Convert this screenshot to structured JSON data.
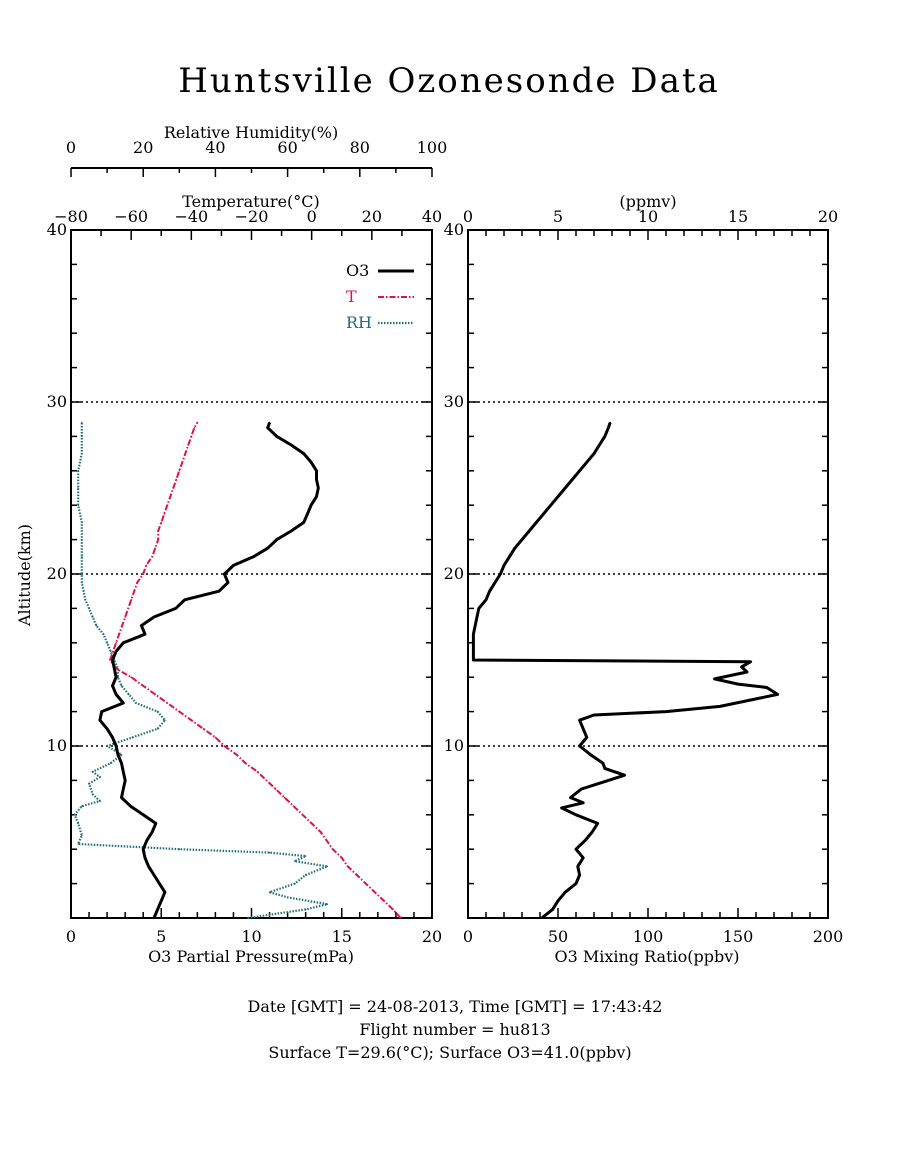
{
  "title": "Huntsville Ozonesonde Data",
  "footer": {
    "line1": "Date [GMT] = 24-08-2013,  Time [GMT] = 17:43:42",
    "line2": "Flight number = hu813",
    "line3": "Surface T=29.6(°C); Surface O3=41.0(ppbv)"
  },
  "colors": {
    "o3": "#000000",
    "temperature": "#e0104a",
    "rh": "#1f6f78"
  },
  "chart_data": [
    {
      "type": "line",
      "panel": "left",
      "ylabel": "Altitude(km)",
      "ylim": [
        0,
        40
      ],
      "y_ticks": [
        10,
        20,
        30,
        40
      ],
      "reference_lines_km": [
        10,
        20,
        30
      ],
      "axes": {
        "o3": {
          "label": "O3 Partial Pressure(mPa)",
          "range": [
            0,
            20
          ],
          "ticks": [
            0,
            5,
            10,
            15,
            20
          ]
        },
        "temperature": {
          "label": "Temperature(°C)",
          "range": [
            -80,
            40
          ],
          "ticks": [
            -80,
            -60,
            -40,
            -20,
            0,
            20,
            40
          ]
        },
        "rh": {
          "label": "Relative Humidity(%)",
          "range": [
            0,
            100
          ],
          "ticks": [
            0,
            20,
            40,
            60,
            80,
            100
          ]
        }
      },
      "legend_position": "top-right",
      "series": [
        {
          "name": "O3",
          "axis": "o3",
          "style": "solid",
          "points": [
            [
              4.6,
              0
            ],
            [
              4.8,
              0.5
            ],
            [
              5.0,
              1.0
            ],
            [
              5.2,
              1.5
            ],
            [
              4.9,
              2.0
            ],
            [
              4.6,
              2.5
            ],
            [
              4.3,
              3.0
            ],
            [
              4.1,
              3.5
            ],
            [
              4.0,
              4.0
            ],
            [
              4.2,
              4.5
            ],
            [
              4.5,
              5.0
            ],
            [
              4.7,
              5.5
            ],
            [
              4.0,
              6.0
            ],
            [
              3.3,
              6.5
            ],
            [
              2.8,
              7.0
            ],
            [
              2.9,
              7.5
            ],
            [
              3.0,
              8.0
            ],
            [
              2.9,
              8.5
            ],
            [
              2.8,
              9.0
            ],
            [
              2.6,
              9.5
            ],
            [
              2.5,
              10.0
            ],
            [
              2.3,
              10.5
            ],
            [
              2.0,
              11.0
            ],
            [
              1.6,
              11.5
            ],
            [
              1.7,
              12.0
            ],
            [
              2.9,
              12.5
            ],
            [
              2.5,
              13.0
            ],
            [
              2.3,
              13.5
            ],
            [
              2.5,
              14.0
            ],
            [
              2.4,
              14.5
            ],
            [
              2.3,
              15.0
            ],
            [
              2.5,
              15.5
            ],
            [
              2.9,
              16.0
            ],
            [
              4.1,
              16.5
            ],
            [
              3.9,
              17.0
            ],
            [
              4.6,
              17.5
            ],
            [
              5.8,
              18.0
            ],
            [
              6.3,
              18.5
            ],
            [
              8.2,
              19.0
            ],
            [
              8.7,
              19.5
            ],
            [
              8.5,
              20.0
            ],
            [
              9.0,
              20.5
            ],
            [
              10.1,
              21.0
            ],
            [
              10.9,
              21.5
            ],
            [
              11.4,
              22.0
            ],
            [
              12.2,
              22.5
            ],
            [
              12.9,
              23.0
            ],
            [
              13.1,
              23.5
            ],
            [
              13.3,
              24.0
            ],
            [
              13.6,
              24.5
            ],
            [
              13.7,
              25.0
            ],
            [
              13.6,
              25.5
            ],
            [
              13.6,
              26.0
            ],
            [
              13.3,
              26.5
            ],
            [
              12.9,
              27.0
            ],
            [
              12.2,
              27.5
            ],
            [
              11.4,
              28.0
            ],
            [
              10.9,
              28.5
            ],
            [
              11.0,
              28.8
            ]
          ]
        },
        {
          "name": "T",
          "axis": "temperature",
          "style": "dash-dot",
          "points": [
            [
              29.6,
              0
            ],
            [
              27,
              0.5
            ],
            [
              24,
              1.0
            ],
            [
              21,
              1.5
            ],
            [
              18,
              2.0
            ],
            [
              15,
              2.5
            ],
            [
              12,
              3.0
            ],
            [
              10,
              3.5
            ],
            [
              7,
              4.0
            ],
            [
              5,
              4.5
            ],
            [
              3,
              5.0
            ],
            [
              0,
              5.5
            ],
            [
              -3,
              6.0
            ],
            [
              -6,
              6.5
            ],
            [
              -9,
              7.0
            ],
            [
              -12,
              7.5
            ],
            [
              -15,
              8.0
            ],
            [
              -18,
              8.5
            ],
            [
              -22,
              9.0
            ],
            [
              -25,
              9.5
            ],
            [
              -29,
              10.0
            ],
            [
              -32,
              10.5
            ],
            [
              -36,
              11.0
            ],
            [
              -40,
              11.5
            ],
            [
              -44,
              12.0
            ],
            [
              -48,
              12.5
            ],
            [
              -52,
              13.0
            ],
            [
              -56,
              13.5
            ],
            [
              -60,
              14.0
            ],
            [
              -65,
              14.5
            ],
            [
              -67,
              15.0
            ],
            [
              -66,
              15.5
            ],
            [
              -65,
              16.0
            ],
            [
              -64,
              16.5
            ],
            [
              -63,
              17.0
            ],
            [
              -62,
              17.5
            ],
            [
              -61,
              18.0
            ],
            [
              -60,
              18.5
            ],
            [
              -59,
              19.0
            ],
            [
              -58,
              19.5
            ],
            [
              -56,
              20.0
            ],
            [
              -55,
              20.5
            ],
            [
              -53,
              21.0
            ],
            [
              -52,
              21.5
            ],
            [
              -51,
              22.0
            ],
            [
              -51,
              22.5
            ],
            [
              -50,
              23.0
            ],
            [
              -49,
              23.5
            ],
            [
              -48,
              24.0
            ],
            [
              -47,
              24.5
            ],
            [
              -46,
              25.0
            ],
            [
              -45,
              25.5
            ],
            [
              -44,
              26.0
            ],
            [
              -43,
              26.5
            ],
            [
              -42,
              27.0
            ],
            [
              -41,
              27.5
            ],
            [
              -40,
              28.0
            ],
            [
              -39,
              28.5
            ],
            [
              -38,
              28.8
            ]
          ]
        },
        {
          "name": "RH",
          "axis": "rh",
          "style": "dotted",
          "points": [
            [
              49,
              0
            ],
            [
              65,
              0.5
            ],
            [
              71,
              0.8
            ],
            [
              60,
              1.2
            ],
            [
              55,
              1.5
            ],
            [
              62,
              2.0
            ],
            [
              65,
              2.5
            ],
            [
              71,
              3.0
            ],
            [
              62,
              3.3
            ],
            [
              65,
              3.6
            ],
            [
              55,
              3.8
            ],
            [
              30,
              4.0
            ],
            [
              2,
              4.3
            ],
            [
              3,
              4.8
            ],
            [
              2,
              5.5
            ],
            [
              1,
              6.0
            ],
            [
              3,
              6.5
            ],
            [
              8,
              6.8
            ],
            [
              6,
              7.2
            ],
            [
              5,
              7.8
            ],
            [
              8,
              8.2
            ],
            [
              6,
              8.5
            ],
            [
              11,
              9.0
            ],
            [
              14,
              9.5
            ],
            [
              10,
              10.0
            ],
            [
              17,
              10.5
            ],
            [
              24,
              11.0
            ],
            [
              26,
              11.5
            ],
            [
              24,
              12.0
            ],
            [
              18,
              12.5
            ],
            [
              16,
              13.0
            ],
            [
              14,
              13.5
            ],
            [
              13,
              14.0
            ],
            [
              13,
              14.5
            ],
            [
              12,
              15.0
            ],
            [
              11,
              15.5
            ],
            [
              10,
              16.0
            ],
            [
              9,
              16.5
            ],
            [
              7,
              17.0
            ],
            [
              6,
              17.5
            ],
            [
              5,
              18.0
            ],
            [
              4,
              18.5
            ],
            [
              3.5,
              19.0
            ],
            [
              3,
              19.5
            ],
            [
              3,
              20.0
            ],
            [
              3,
              21.0
            ],
            [
              3,
              22.0
            ],
            [
              3,
              23.0
            ],
            [
              2,
              24.0
            ],
            [
              2,
              25.0
            ],
            [
              2,
              26.0
            ],
            [
              3,
              27.0
            ],
            [
              3,
              28.0
            ],
            [
              3,
              28.8
            ]
          ]
        }
      ]
    },
    {
      "type": "line",
      "panel": "right",
      "ylim": [
        0,
        40
      ],
      "y_ticks": [
        10,
        20,
        30,
        40
      ],
      "reference_lines_km": [
        10,
        20,
        30
      ],
      "axes": {
        "ppbv": {
          "label": "O3 Mixing Ratio(ppbv)",
          "range": [
            0,
            200
          ],
          "ticks": [
            0,
            50,
            100,
            150,
            200
          ]
        },
        "ppmv": {
          "label": "(ppmv)",
          "range": [
            0,
            20
          ],
          "ticks": [
            0,
            5,
            10,
            15,
            20
          ]
        }
      },
      "series": [
        {
          "name": "O3 Mixing Ratio",
          "axis": "ppbv",
          "style": "solid",
          "points": [
            [
              41,
              0
            ],
            [
              47,
              0.5
            ],
            [
              50,
              1.0
            ],
            [
              54,
              1.5
            ],
            [
              60,
              2.0
            ],
            [
              62,
              2.5
            ],
            [
              61,
              3.0
            ],
            [
              64,
              3.5
            ],
            [
              60,
              4.0
            ],
            [
              65,
              4.5
            ],
            [
              69,
              5.0
            ],
            [
              72,
              5.5
            ],
            [
              60,
              6.0
            ],
            [
              52,
              6.4
            ],
            [
              64,
              6.7
            ],
            [
              57,
              7.0
            ],
            [
              63,
              7.5
            ],
            [
              78,
              8.0
            ],
            [
              87,
              8.3
            ],
            [
              76,
              8.7
            ],
            [
              75,
              9.0
            ],
            [
              68,
              9.5
            ],
            [
              62,
              10.0
            ],
            [
              66,
              10.5
            ],
            [
              64,
              11.0
            ],
            [
              62,
              11.5
            ],
            [
              70,
              11.8
            ],
            [
              110,
              12.0
            ],
            [
              140,
              12.3
            ],
            [
              172,
              13.0
            ],
            [
              166,
              13.4
            ],
            [
              150,
              13.6
            ],
            [
              137,
              13.9
            ],
            [
              155,
              14.3
            ],
            [
              152,
              14.6
            ],
            [
              157,
              14.9
            ],
            [
              3,
              15.0
            ],
            [
              3,
              15.5
            ],
            [
              3,
              16.0
            ],
            [
              3,
              16.5
            ],
            [
              4,
              17.0
            ],
            [
              5,
              17.5
            ],
            [
              6,
              18.0
            ],
            [
              10,
              18.5
            ],
            [
              12,
              19.0
            ],
            [
              15,
              19.5
            ],
            [
              18,
              20.0
            ],
            [
              20,
              20.5
            ],
            [
              23,
              21.0
            ],
            [
              26,
              21.5
            ],
            [
              30,
              22.0
            ],
            [
              34,
              22.5
            ],
            [
              38,
              23.0
            ],
            [
              42,
              23.5
            ],
            [
              46,
              24.0
            ],
            [
              50,
              24.5
            ],
            [
              54,
              25.0
            ],
            [
              58,
              25.5
            ],
            [
              62,
              26.0
            ],
            [
              66,
              26.5
            ],
            [
              70,
              27.0
            ],
            [
              73,
              27.5
            ],
            [
              76,
              28.0
            ],
            [
              78,
              28.5
            ],
            [
              79,
              28.8
            ]
          ]
        }
      ]
    }
  ]
}
